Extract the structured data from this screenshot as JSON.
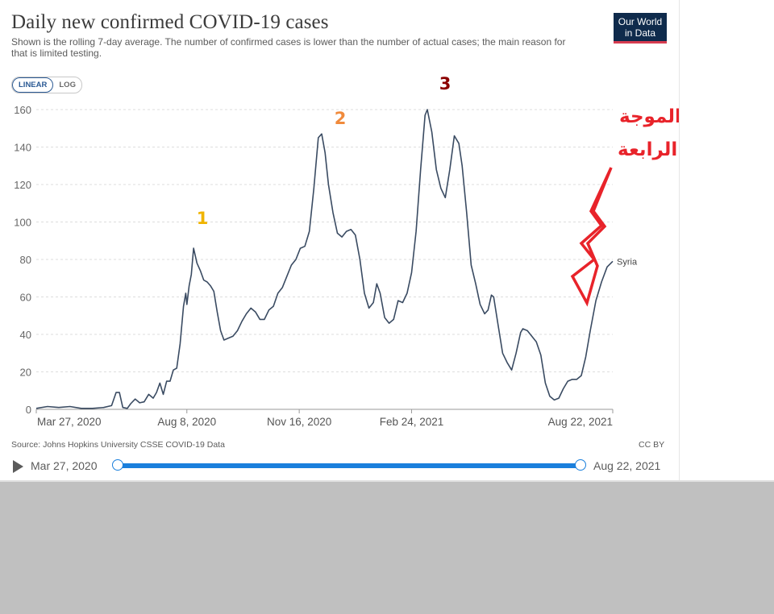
{
  "header": {
    "title": "Daily new confirmed COVID-19 cases",
    "subtitle": "Shown is the rolling 7-day average. The number of confirmed cases is lower than the number of actual cases; the main reason for that is limited testing.",
    "logo_line1": "Our World",
    "logo_line2": "in Data"
  },
  "controls": {
    "linear_label": "LINEAR",
    "log_label": "LOG"
  },
  "footer": {
    "source": "Source: Johns Hopkins University CSSE COVID-19 Data",
    "license": "CC BY"
  },
  "timeline": {
    "start": "Mar 27, 2020",
    "end": "Aug 22, 2021"
  },
  "colors": {
    "line": "#3a4b62",
    "grid": "#dddddd",
    "label1": "#f0b400",
    "label2": "#f08a3c",
    "label3": "#8b0000",
    "annotation": "#e8232a",
    "slider": "#1a7fdc"
  },
  "chart_data": {
    "type": "line",
    "scale": "linear",
    "grid": "horizontal dashed",
    "ylim": [
      0,
      160
    ],
    "yticks": [
      0,
      20,
      40,
      60,
      80,
      100,
      120,
      140,
      160
    ],
    "xticks": [
      "Mar 27, 2020",
      "Aug 8, 2020",
      "Nov 16, 2020",
      "Feb 24, 2021",
      "Aug 22, 2021"
    ],
    "xlim": [
      "2020-03-27",
      "2021-08-22"
    ],
    "series": [
      {
        "name": "Syria",
        "points": [
          [
            "2020-03-27",
            0.5
          ],
          [
            "2020-04-06",
            1.5
          ],
          [
            "2020-04-16",
            1
          ],
          [
            "2020-04-26",
            1.5
          ],
          [
            "2020-05-06",
            0.5
          ],
          [
            "2020-05-16",
            0.5
          ],
          [
            "2020-05-26",
            1
          ],
          [
            "2020-06-02",
            2
          ],
          [
            "2020-06-06",
            9
          ],
          [
            "2020-06-09",
            9
          ],
          [
            "2020-06-12",
            1
          ],
          [
            "2020-06-16",
            0.5
          ],
          [
            "2020-06-19",
            3
          ],
          [
            "2020-06-23",
            5.5
          ],
          [
            "2020-06-27",
            3.5
          ],
          [
            "2020-07-01",
            4
          ],
          [
            "2020-07-05",
            8
          ],
          [
            "2020-07-09",
            6
          ],
          [
            "2020-07-12",
            9
          ],
          [
            "2020-07-15",
            14
          ],
          [
            "2020-07-18",
            8
          ],
          [
            "2020-07-21",
            15
          ],
          [
            "2020-07-24",
            15
          ],
          [
            "2020-07-27",
            21
          ],
          [
            "2020-07-30",
            22
          ],
          [
            "2020-08-02",
            35
          ],
          [
            "2020-08-05",
            55
          ],
          [
            "2020-08-07",
            62
          ],
          [
            "2020-08-08",
            56
          ],
          [
            "2020-08-10",
            66
          ],
          [
            "2020-08-12",
            72
          ],
          [
            "2020-08-14",
            86
          ],
          [
            "2020-08-17",
            78
          ],
          [
            "2020-08-20",
            74
          ],
          [
            "2020-08-23",
            69
          ],
          [
            "2020-08-26",
            68
          ],
          [
            "2020-08-29",
            66
          ],
          [
            "2020-09-01",
            63
          ],
          [
            "2020-09-04",
            52
          ],
          [
            "2020-09-07",
            42
          ],
          [
            "2020-09-10",
            37
          ],
          [
            "2020-09-14",
            38
          ],
          [
            "2020-09-18",
            39
          ],
          [
            "2020-09-22",
            42
          ],
          [
            "2020-09-26",
            47
          ],
          [
            "2020-09-30",
            51
          ],
          [
            "2020-10-04",
            54
          ],
          [
            "2020-10-08",
            52
          ],
          [
            "2020-10-12",
            48
          ],
          [
            "2020-10-16",
            48
          ],
          [
            "2020-10-20",
            53
          ],
          [
            "2020-10-24",
            55
          ],
          [
            "2020-10-28",
            62
          ],
          [
            "2020-11-01",
            65
          ],
          [
            "2020-11-05",
            71
          ],
          [
            "2020-11-09",
            77
          ],
          [
            "2020-11-13",
            80
          ],
          [
            "2020-11-17",
            86
          ],
          [
            "2020-11-21",
            87
          ],
          [
            "2020-11-25",
            95
          ],
          [
            "2020-11-29",
            118
          ],
          [
            "2020-12-03",
            145
          ],
          [
            "2020-12-06",
            147
          ],
          [
            "2020-12-09",
            137
          ],
          [
            "2020-12-12",
            120
          ],
          [
            "2020-12-16",
            105
          ],
          [
            "2020-12-20",
            94
          ],
          [
            "2020-12-24",
            92
          ],
          [
            "2020-12-28",
            95
          ],
          [
            "2021-01-01",
            96
          ],
          [
            "2021-01-05",
            93
          ],
          [
            "2021-01-09",
            80
          ],
          [
            "2021-01-13",
            62
          ],
          [
            "2021-01-17",
            54
          ],
          [
            "2021-01-21",
            57
          ],
          [
            "2021-01-24",
            67
          ],
          [
            "2021-01-27",
            62
          ],
          [
            "2021-01-31",
            49
          ],
          [
            "2021-02-04",
            46
          ],
          [
            "2021-02-08",
            48
          ],
          [
            "2021-02-12",
            58
          ],
          [
            "2021-02-16",
            57
          ],
          [
            "2021-02-20",
            62
          ],
          [
            "2021-02-24",
            73
          ],
          [
            "2021-02-28",
            95
          ],
          [
            "2021-03-04",
            128
          ],
          [
            "2021-03-08",
            157
          ],
          [
            "2021-03-10",
            160
          ],
          [
            "2021-03-14",
            148
          ],
          [
            "2021-03-18",
            128
          ],
          [
            "2021-03-22",
            118
          ],
          [
            "2021-03-26",
            113
          ],
          [
            "2021-03-30",
            128
          ],
          [
            "2021-04-03",
            146
          ],
          [
            "2021-04-07",
            142
          ],
          [
            "2021-04-10",
            130
          ],
          [
            "2021-04-14",
            105
          ],
          [
            "2021-04-18",
            77
          ],
          [
            "2021-04-22",
            67
          ],
          [
            "2021-04-26",
            56
          ],
          [
            "2021-04-30",
            51
          ],
          [
            "2021-05-03",
            53
          ],
          [
            "2021-05-06",
            61
          ],
          [
            "2021-05-08",
            60
          ],
          [
            "2021-05-12",
            45
          ],
          [
            "2021-05-16",
            30
          ],
          [
            "2021-05-20",
            25
          ],
          [
            "2021-05-24",
            21
          ],
          [
            "2021-05-28",
            30
          ],
          [
            "2021-06-01",
            41
          ],
          [
            "2021-06-03",
            43
          ],
          [
            "2021-06-07",
            42
          ],
          [
            "2021-06-11",
            39
          ],
          [
            "2021-06-15",
            36
          ],
          [
            "2021-06-19",
            29
          ],
          [
            "2021-06-23",
            14
          ],
          [
            "2021-06-27",
            7
          ],
          [
            "2021-07-01",
            5
          ],
          [
            "2021-07-05",
            6
          ],
          [
            "2021-07-09",
            11
          ],
          [
            "2021-07-13",
            15
          ],
          [
            "2021-07-17",
            16
          ],
          [
            "2021-07-21",
            16
          ],
          [
            "2021-07-25",
            18
          ],
          [
            "2021-07-29",
            28
          ],
          [
            "2021-08-02",
            42
          ],
          [
            "2021-08-07",
            58
          ],
          [
            "2021-08-12",
            68
          ],
          [
            "2021-08-17",
            76
          ],
          [
            "2021-08-22",
            79
          ]
        ]
      }
    ],
    "annotations": [
      {
        "text": "1",
        "color": "#f0b400"
      },
      {
        "text": "2",
        "color": "#f08a3c"
      },
      {
        "text": "3",
        "color": "#8b0000"
      },
      {
        "text_line1": "بداية الموجة",
        "text_line2": "الرابعة",
        "color": "#e8232a"
      }
    ]
  }
}
